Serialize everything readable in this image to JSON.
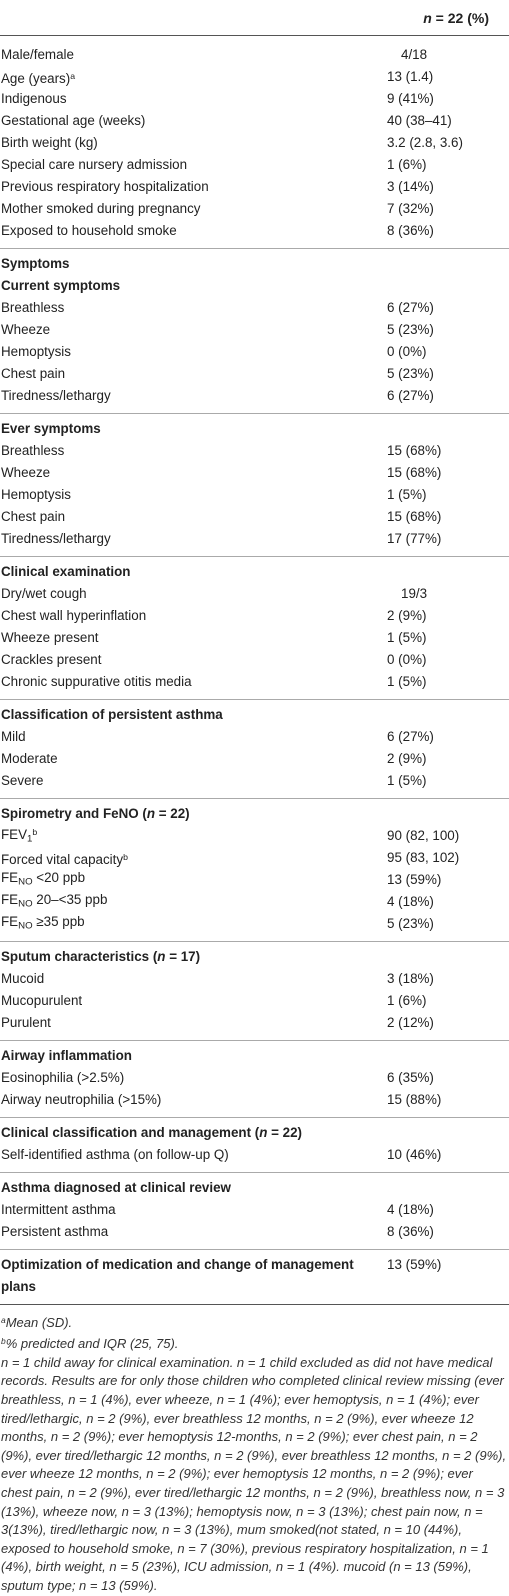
{
  "header": {
    "n_label": "n",
    "n_rest": " = 22 (%)"
  },
  "demographics": [
    {
      "label": "Male/female",
      "value": "4/18",
      "indent": true
    },
    {
      "label": "Age (years)",
      "sup": "a",
      "value": "13 (1.4)"
    },
    {
      "label": "Indigenous",
      "value": "9 (41%)"
    },
    {
      "label": "Gestational age (weeks)",
      "value": "40 (38–41)"
    },
    {
      "label": "Birth weight (kg)",
      "value": "3.2 (2.8, 3.6)"
    },
    {
      "label": "Special care nursery admission",
      "value": "1 (6%)"
    },
    {
      "label": "Previous respiratory hospitalization",
      "value": "3 (14%)"
    },
    {
      "label": "Mother smoked during pregnancy",
      "value": "7 (32%)"
    },
    {
      "label": "Exposed to household smoke",
      "value": "8 (36%)"
    }
  ],
  "symptoms": {
    "title": "Symptoms",
    "current_title": "Current symptoms",
    "current": [
      {
        "label": "Breathless",
        "value": "6 (27%)"
      },
      {
        "label": "Wheeze",
        "value": "5 (23%)"
      },
      {
        "label": "Hemoptysis",
        "value": "0 (0%)"
      },
      {
        "label": "Chest pain",
        "value": "5 (23%)"
      },
      {
        "label": "Tiredness/lethargy",
        "value": "6 (27%)"
      }
    ],
    "ever_title": "Ever symptoms",
    "ever": [
      {
        "label": "Breathless",
        "value": "15 (68%)"
      },
      {
        "label": "Wheeze",
        "value": "15 (68%)"
      },
      {
        "label": "Hemoptysis",
        "value": "1 (5%)"
      },
      {
        "label": "Chest pain",
        "value": "15 (68%)"
      },
      {
        "label": "Tiredness/lethargy",
        "value": "17 (77%)"
      }
    ]
  },
  "clinical": {
    "title": "Clinical examination",
    "rows": [
      {
        "label": "Dry/wet cough",
        "value": "19/3"
      },
      {
        "label": "Chest wall hyperinflation",
        "value": "2 (9%)"
      },
      {
        "label": "Wheeze present",
        "value": "1 (5%)"
      },
      {
        "label": "Crackles present",
        "value": "0 (0%)"
      },
      {
        "label": "Chronic suppurative otitis media",
        "value": "1 (5%)"
      }
    ]
  },
  "asthma_class": {
    "title": "Classification of persistent asthma",
    "rows": [
      {
        "label": "Mild",
        "value": "6 (27%)"
      },
      {
        "label": "Moderate",
        "value": "2 (9%)"
      },
      {
        "label": "Severe",
        "value": "1 (5%)"
      }
    ]
  },
  "spirometry": {
    "title": "Spirometry and FeNO (",
    "title_n": "n",
    "title_rest": " = 22)",
    "fev_label": "FEV",
    "fev_sub": "1",
    "fev_sup": "b",
    "fev_value": "90 (82, 100)",
    "fvc_label": "Forced vital capacity",
    "fvc_sup": "b",
    "fvc_value": "95 (83, 102)",
    "fe_label": "FE",
    "fe_sub": "NO",
    "fe_rows": [
      {
        "range": " <20 ppb",
        "value": "13 (59%)"
      },
      {
        "range": " 20–<35 ppb",
        "value": "4 (18%)"
      },
      {
        "range": " ≥35 ppb",
        "value": "5 (23%)"
      }
    ]
  },
  "sputum": {
    "title": "Sputum characteristics (",
    "title_n": "n",
    "title_rest": " = 17)",
    "rows": [
      {
        "label": "Mucoid",
        "value": "3 (18%)"
      },
      {
        "label": "Mucopurulent",
        "value": "1 (6%)"
      },
      {
        "label": "Purulent",
        "value": "2 (12%)"
      }
    ]
  },
  "airway": {
    "title": "Airway inflammation",
    "rows": [
      {
        "label": "Eosinophilia (>2.5%)",
        "value": "6 (35%)"
      },
      {
        "label": "Airway neutrophilia (>15%)",
        "value": "15 (88%)"
      }
    ]
  },
  "management": {
    "title": "Clinical classification and management (",
    "title_n": "n",
    "title_rest": " = 22)",
    "rows": [
      {
        "label": "Self-identified asthma (on follow-up Q)",
        "value": "10 (46%)"
      }
    ]
  },
  "diagnosed": {
    "title": "Asthma diagnosed at clinical review",
    "rows": [
      {
        "label": "Intermittent asthma",
        "value": "4 (18%)"
      },
      {
        "label": "Persistent asthma",
        "value": "8 (36%)"
      }
    ]
  },
  "optimization": {
    "label": "Optimization of medication and change of management plans",
    "value": "13 (59%)"
  },
  "footnotes": {
    "a_sup": "a",
    "a_text": "Mean (SD).",
    "b_sup": "b",
    "b_text": "% predicted and IQR (25, 75).",
    "body": "n = 1 child away for clinical examination. n = 1 child excluded as did not have medical records. Results are for only those children who completed clinical review missing (ever breathless, n = 1 (4%), ever wheeze, n = 1 (4%); ever hemoptysis, n = 1 (4%); ever tired/lethargic, n = 2 (9%), ever breathless 12 months, n = 2 (9%), ever wheeze 12 months, n = 2 (9%); ever hemoptysis 12-months, n = 2 (9%); ever chest pain, n = 2 (9%), ever tired/lethargic 12 months, n = 2 (9%), ever breathless 12 months, n = 2 (9%), ever wheeze 12 months, n = 2 (9%); ever hemoptysis 12 months, n = 2 (9%); ever chest pain, n = 2 (9%), ever tired/lethargic 12 months, n = 2 (9%), breathless now, n = 3 (13%), wheeze now, n = 3 (13%); hemoptysis now, n = 3 (13%); chest pain now, n = 3(13%), tired/lethargic now, n = 3 (13%), mum smoked(not stated, n = 10 (44%), exposed to household smoke, n = 7 (30%), previous respiratory hospitalization, n = 1 (4%), birth weight, n = 5 (23%), ICU admission, n = 1 (4%). mucoid (n = 13 (59%), sputum type; n = 13 (59%)."
  }
}
